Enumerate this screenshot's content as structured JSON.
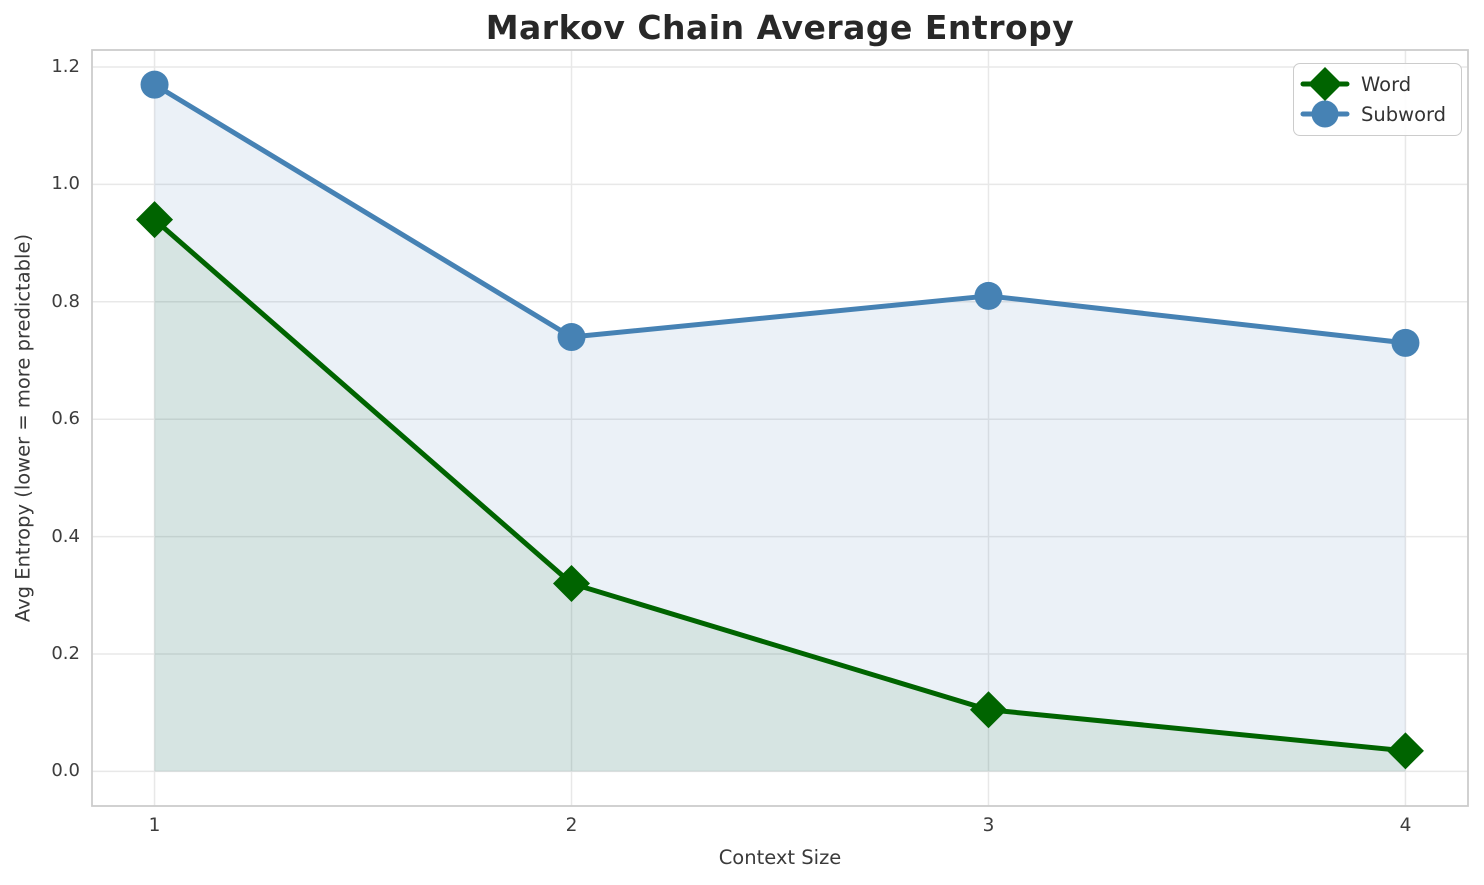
{
  "chart_data": {
    "type": "line",
    "title": "Markov Chain Average Entropy",
    "xlabel": "Context Size",
    "ylabel": "Avg Entropy (lower = more predictable)",
    "x": [
      1,
      2,
      3,
      4
    ],
    "series": [
      {
        "name": "Word",
        "marker": "diamond",
        "color": "#006400",
        "fill_alpha": 0.09,
        "values": [
          0.94,
          0.32,
          0.105,
          0.035
        ]
      },
      {
        "name": "Subword",
        "marker": "circle",
        "color": "#4682b4",
        "fill_alpha": 0.11,
        "values": [
          1.17,
          0.74,
          0.81,
          0.73
        ]
      }
    ],
    "fill_to_zero": true,
    "xlim": [
      0.85,
      4.15
    ],
    "ylim": [
      -0.059,
      1.229
    ],
    "xticks": {
      "values": [
        1,
        2,
        3,
        4
      ],
      "labels": [
        "1",
        "2",
        "3",
        "4"
      ]
    },
    "yticks": {
      "values": [
        0.0,
        0.2,
        0.4,
        0.6,
        0.8,
        1.0,
        1.2
      ],
      "labels": [
        "0.0",
        "0.2",
        "0.4",
        "0.6",
        "0.8",
        "1.0",
        "1.2"
      ]
    },
    "grid": true,
    "legend_position": "upper right"
  },
  "style_colors": {
    "grid": "#e8e8e8",
    "spine": "#cccccc",
    "title_text": "#282828",
    "label_text": "#3a3a3a",
    "legend_text": "#333333",
    "background": "#ffffff"
  }
}
